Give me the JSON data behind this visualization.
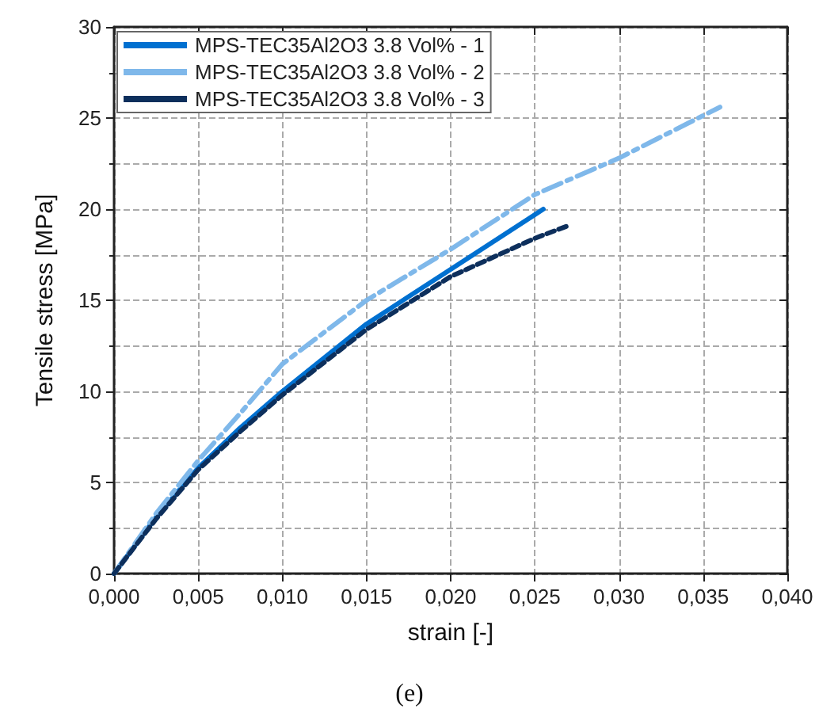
{
  "chart_data": {
    "type": "line",
    "xlabel": "strain [-]",
    "ylabel": "Tensile stress [MPa]",
    "annotations": [
      "(e)"
    ],
    "xlim": [
      0,
      0.04
    ],
    "xticks": [
      {
        "value": 0,
        "label": "0,000"
      },
      {
        "value": 0.005,
        "label": "0,005"
      },
      {
        "value": 0.01,
        "label": "0,010"
      },
      {
        "value": 0.015,
        "label": "0,015"
      },
      {
        "value": 0.02,
        "label": "0,020"
      },
      {
        "value": 0.025,
        "label": "0,025"
      },
      {
        "value": 0.03,
        "label": "0,030"
      },
      {
        "value": 0.035,
        "label": "0,035"
      },
      {
        "value": 0.04,
        "label": "0,040"
      }
    ],
    "ylim": [
      0,
      30
    ],
    "yticks": [
      0,
      5,
      10,
      15,
      20,
      25,
      30
    ],
    "grid": true,
    "legend": "top left",
    "marker": "none",
    "series": [
      {
        "name": "MPS-TEC35Al2O3 3.8 Vol% - 1",
        "color": "#0070d0",
        "line_style": "solid",
        "x": [
          0,
          0.0025,
          0.005,
          0.0075,
          0.01,
          0.015,
          0.02,
          0.025,
          0.0255
        ],
        "values": [
          0,
          3.1,
          5.8,
          8.0,
          10.0,
          13.7,
          16.7,
          19.7,
          20.0
        ]
      },
      {
        "name": "MPS-TEC35Al2O3 3.8 Vol% - 2",
        "color": "#7fb8ea",
        "line_style": "dashdot",
        "x": [
          0,
          0.0025,
          0.005,
          0.0075,
          0.01,
          0.015,
          0.02,
          0.025,
          0.03,
          0.036
        ],
        "values": [
          0,
          3.3,
          6.2,
          8.8,
          11.5,
          15.0,
          17.8,
          20.8,
          22.8,
          25.6
        ]
      },
      {
        "name": "MPS-TEC35Al2O3 3.8 Vol% - 3",
        "color": "#0d2f5c",
        "line_style": "dashed",
        "x": [
          0,
          0.0025,
          0.005,
          0.0075,
          0.01,
          0.015,
          0.02,
          0.025,
          0.027
        ],
        "values": [
          0,
          3.0,
          5.7,
          7.8,
          9.8,
          13.4,
          16.3,
          18.4,
          19.1
        ]
      }
    ]
  }
}
